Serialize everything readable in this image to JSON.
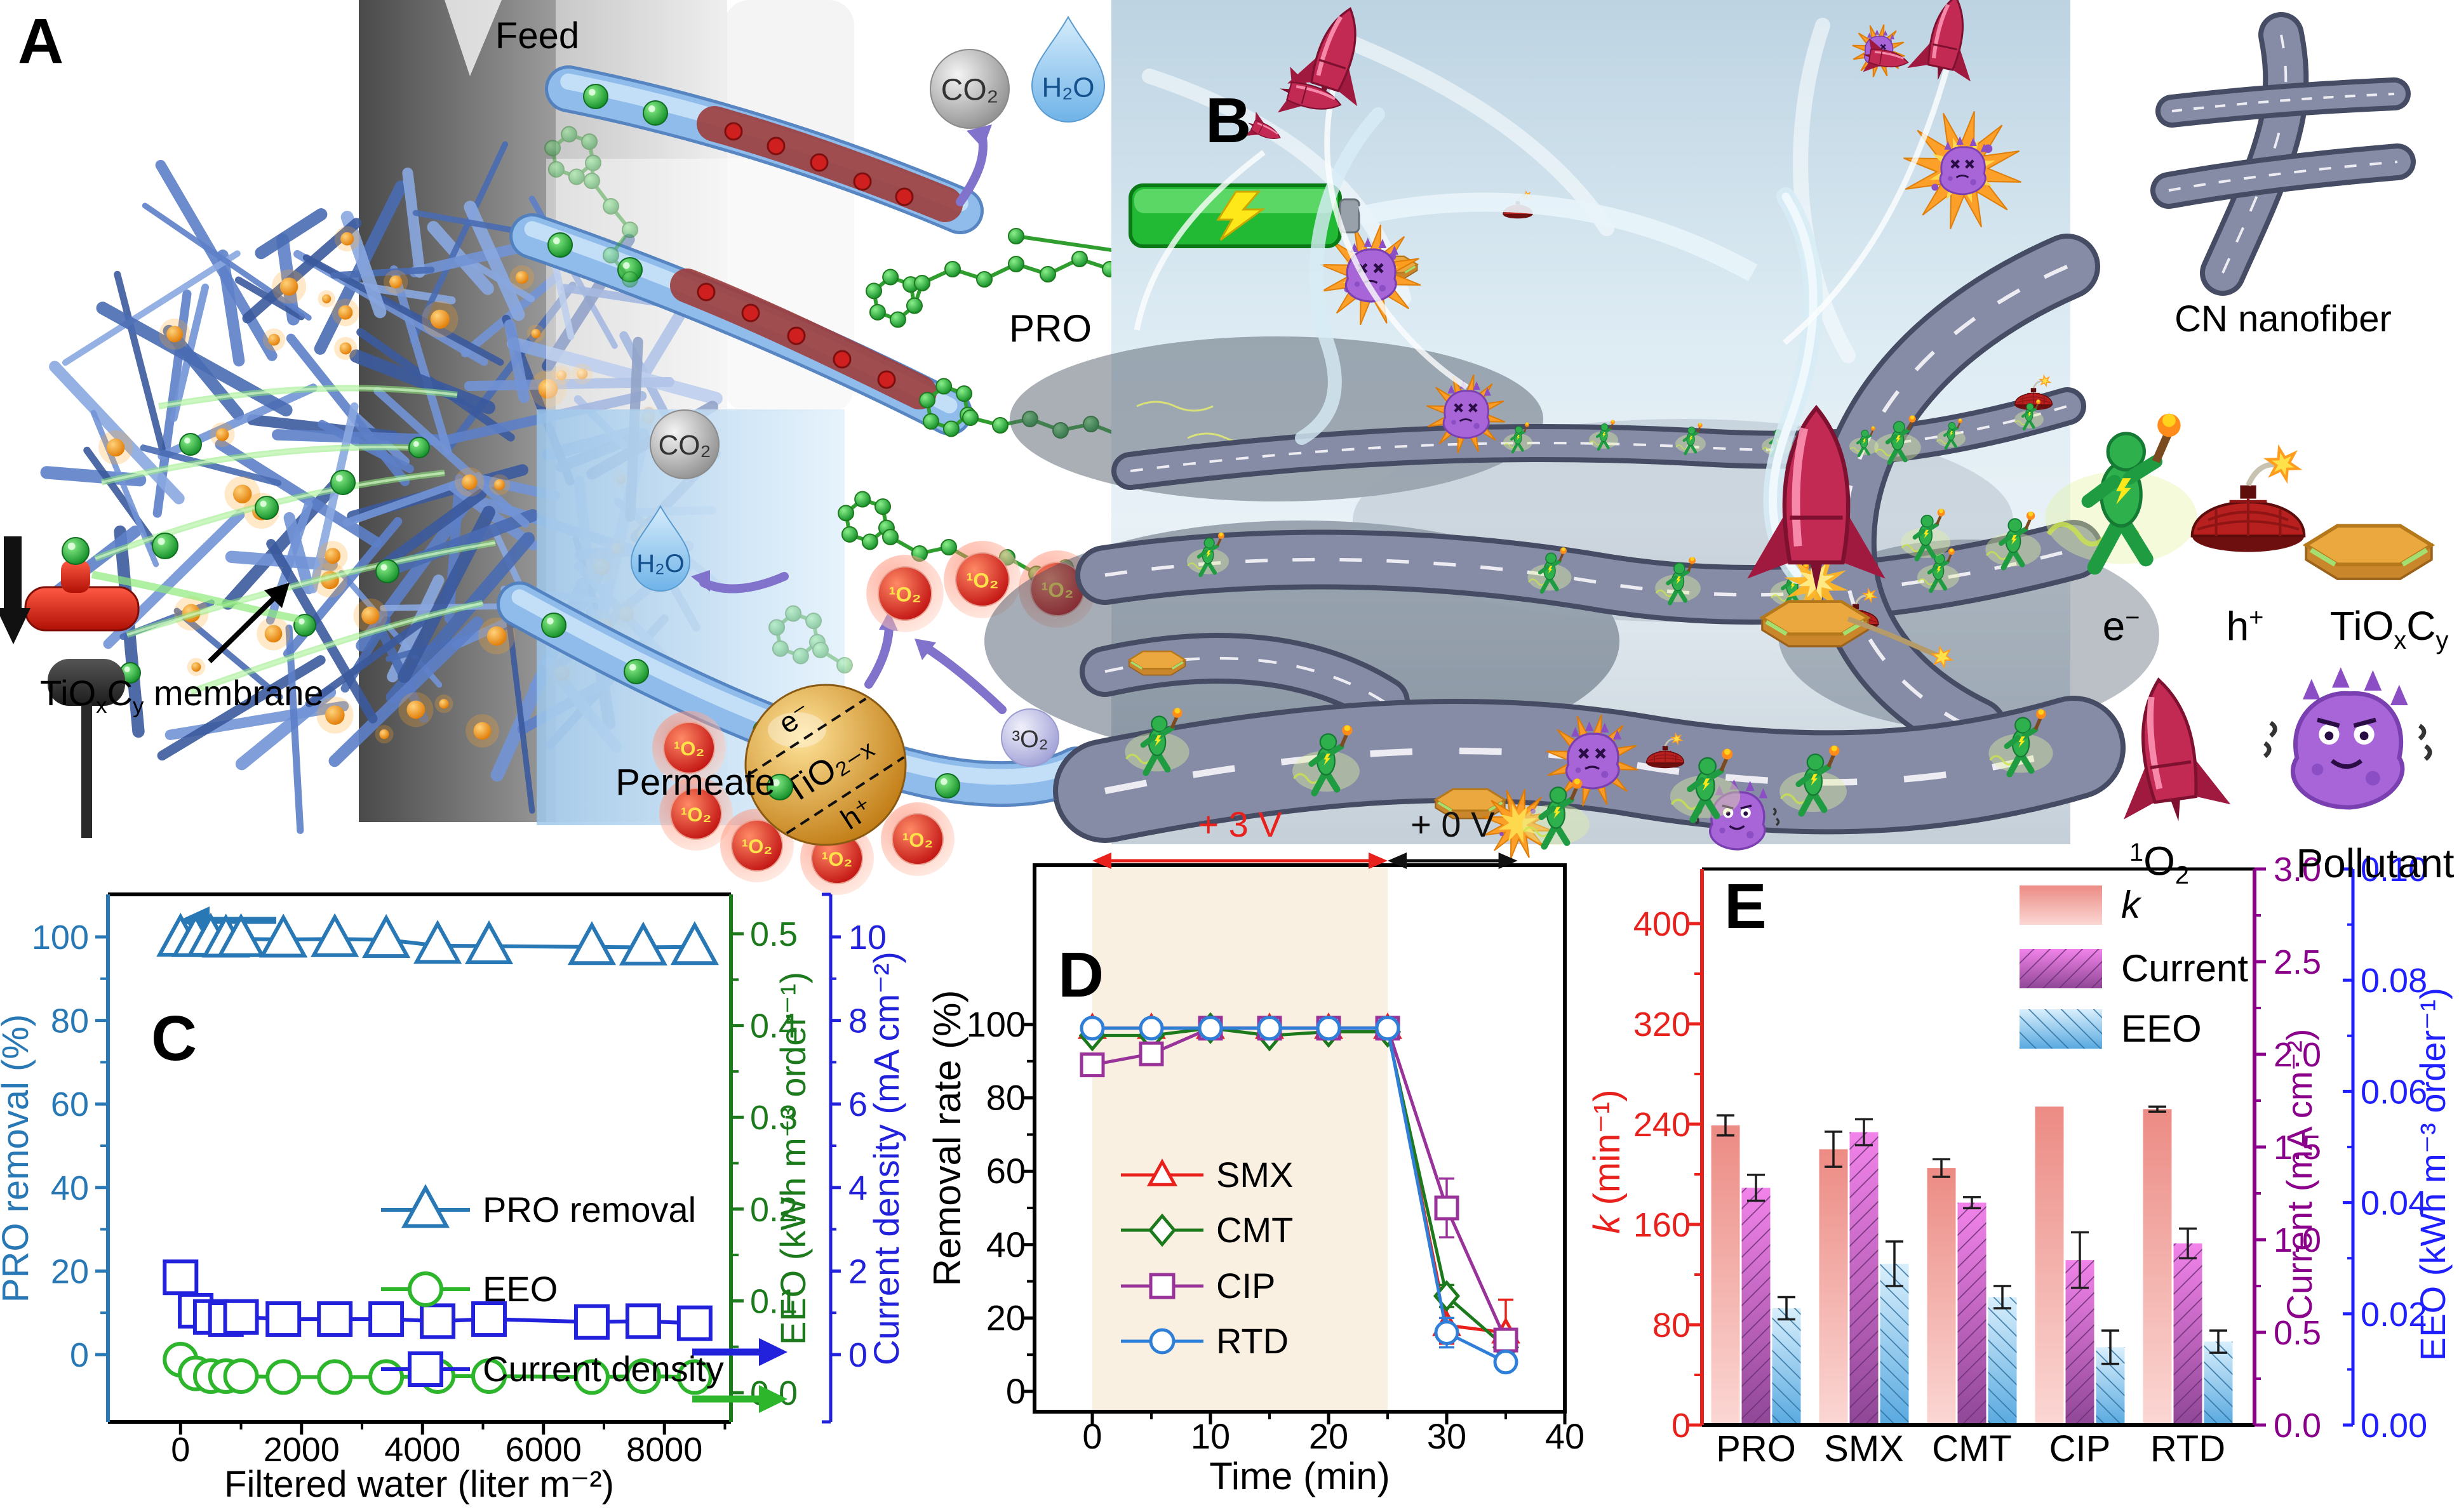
{
  "panel_a": {
    "label": "A",
    "feed": "Feed",
    "permeate": "Permeate",
    "membrane_html": "TiO<sub>x</sub>C<sub>y</sub> membrane",
    "pro": "PRO",
    "co2": "CO₂",
    "h2o": "H₂O",
    "singlet_o2": "¹O₂",
    "triplet_o2": "³O₂",
    "nanoparticle": "TiO₂₋ₓ",
    "electron": "e⁻",
    "hole": "h⁺"
  },
  "panel_b": {
    "label": "B",
    "legend": {
      "cn_html": "CN nanofiber",
      "electron_html": "e<sup>−</sup>",
      "hole_html": "h<sup>+</sup>",
      "tioxcy_html": "TiO<sub>x</sub>C<sub>y</sub>",
      "singlet_o2_html": "<sup>1</sup>O<sub>2</sub>",
      "pollutant_html": "Pollutant"
    }
  },
  "panel_c_label": "C",
  "panel_d_label": "D",
  "panel_e_label": "E",
  "chart_data": [
    {
      "panel": "C",
      "type": "line",
      "xlabel": "Filtered water (liter m⁻²)",
      "x_ticks": [
        0,
        2000,
        4000,
        6000,
        8000
      ],
      "axes": [
        {
          "id": "removal",
          "side": "left",
          "label": "PRO removal (%)",
          "color": "#2878b5",
          "ticks": [
            0,
            20,
            40,
            60,
            80,
            100
          ]
        },
        {
          "id": "eeo",
          "side": "right",
          "label": "EEO (kWh m⁻³ order⁻¹)",
          "color": "#1c7a1c",
          "ticks": [
            0.0,
            0.1,
            0.2,
            0.3,
            0.4,
            0.5
          ]
        },
        {
          "id": "current",
          "side": "right-offset",
          "label": "Current density (mA cm⁻²)",
          "color": "#2222dd",
          "ticks": [
            0,
            2,
            4,
            6,
            8,
            10
          ]
        }
      ],
      "series": [
        {
          "name": "PRO removal",
          "axis": "removal",
          "marker": "triangle",
          "color": "#2878b5",
          "x": [
            0,
            250,
            500,
            750,
            1000,
            1700,
            2550,
            3400,
            4250,
            5100,
            6800,
            7650,
            8500
          ],
          "y": [
            99.6,
            99.5,
            99.6,
            99.4,
            99.5,
            99.4,
            99.5,
            99.3,
            97.9,
            97.8,
            97.6,
            97.5,
            97.6
          ]
        },
        {
          "name": "EEO",
          "axis": "eeo",
          "marker": "circle",
          "color": "#2db52c",
          "x": [
            0,
            250,
            500,
            750,
            1000,
            1700,
            2550,
            3400,
            4250,
            5100,
            6800,
            7650,
            8500
          ],
          "y": [
            0.036,
            0.021,
            0.018,
            0.018,
            0.018,
            0.017,
            0.017,
            0.017,
            0.018,
            0.018,
            0.017,
            0.018,
            0.017
          ]
        },
        {
          "name": "Current density",
          "axis": "current",
          "marker": "square",
          "color": "#2222dd",
          "x": [
            0,
            250,
            500,
            750,
            1000,
            1700,
            2550,
            3400,
            4250,
            5100,
            6800,
            7650,
            8500
          ],
          "y": [
            1.85,
            1.05,
            0.9,
            0.85,
            0.9,
            0.85,
            0.85,
            0.85,
            0.8,
            0.85,
            0.78,
            0.8,
            0.75
          ]
        }
      ]
    },
    {
      "panel": "D",
      "type": "line",
      "xlabel": "Time (min)",
      "ylabel": "Removal rate (%)",
      "x_ticks": [
        0,
        10,
        20,
        30,
        40
      ],
      "y_ticks": [
        0,
        20,
        40,
        60,
        80,
        100
      ],
      "shaded_region": {
        "x0": 0,
        "x1": 25,
        "color": "#faf0e2"
      },
      "voltage_phases": [
        {
          "label": "+ 3 V",
          "x0": 0,
          "x1": 25,
          "color": "#e8211d"
        },
        {
          "label": "+ 0 V",
          "x0": 25,
          "x1": 36,
          "color": "#111111"
        }
      ],
      "x": [
        0,
        5,
        10,
        15,
        20,
        25,
        30,
        35
      ],
      "series": [
        {
          "name": "SMX",
          "marker": "triangle",
          "color": "#e8211d",
          "y": [
            99,
            99,
            99,
            99,
            99,
            99,
            18,
            16
          ],
          "err": [
            1,
            1,
            1,
            1,
            1,
            1,
            5,
            9
          ]
        },
        {
          "name": "CMT",
          "marker": "diamond",
          "color": "#1c7a1c",
          "y": [
            97,
            97,
            99,
            97,
            98,
            98,
            26,
            12
          ],
          "err": [
            1,
            1,
            1,
            1,
            1,
            1,
            3,
            2
          ]
        },
        {
          "name": "CIP",
          "marker": "square",
          "color": "#993399",
          "y": [
            89,
            92,
            99,
            99,
            99,
            99,
            50,
            14
          ],
          "err": [
            3,
            2,
            1,
            1,
            1,
            1,
            8,
            3
          ]
        },
        {
          "name": "RTD",
          "marker": "circle",
          "color": "#2f7ed8",
          "y": [
            99,
            99,
            99,
            99,
            99,
            99,
            16,
            8
          ],
          "err": [
            1,
            1,
            1,
            1,
            1,
            1,
            4,
            2
          ]
        }
      ]
    },
    {
      "panel": "E",
      "type": "bar",
      "categories": [
        "PRO",
        "SMX",
        "CMT",
        "CIP",
        "RTD"
      ],
      "axes": [
        {
          "id": "k",
          "label_parts": [
            {
              "text": "k",
              "italic": true
            },
            {
              "text": " (min⁻¹)"
            }
          ],
          "color": "#e8211d",
          "ticks": [
            0,
            80,
            160,
            240,
            320,
            400
          ],
          "max": 400,
          "decimals": 0
        },
        {
          "id": "current",
          "label_parts": [
            {
              "text": "Current (mA cm⁻²)"
            }
          ],
          "color": "#8b008b",
          "ticks": [
            0,
            0.5,
            1,
            1.5,
            2,
            2.5,
            3
          ],
          "max": 3,
          "decimals": 1
        },
        {
          "id": "eeo",
          "label_parts": [
            {
              "text": "EEO (kWh m⁻³ order⁻¹)"
            }
          ],
          "color": "#1f1fff",
          "ticks": [
            0,
            0.02,
            0.04,
            0.06,
            0.08,
            0.1
          ],
          "max": 0.1,
          "decimals": 2
        }
      ],
      "series": [
        {
          "name": "k",
          "italic": true,
          "axis": "k",
          "style": "pink",
          "values": [
            239,
            220,
            205,
            254,
            252
          ],
          "errors": [
            8,
            14,
            7,
            0,
            2
          ]
        },
        {
          "name": "Current",
          "axis": "current",
          "style": "magenta-hatch",
          "values": [
            1.28,
            1.58,
            1.2,
            0.89,
            0.98
          ],
          "errors": [
            0.07,
            0.07,
            0.03,
            0.15,
            0.08
          ]
        },
        {
          "name": "EEO",
          "axis": "eeo",
          "style": "blue-hatch",
          "values": [
            0.021,
            0.029,
            0.023,
            0.014,
            0.015
          ],
          "errors": [
            0.002,
            0.004,
            0.002,
            0.003,
            0.002
          ]
        }
      ]
    }
  ]
}
